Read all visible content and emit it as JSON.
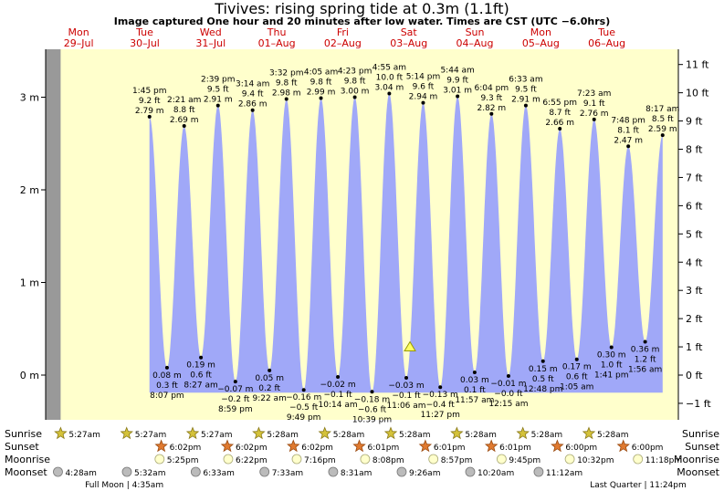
{
  "header": {
    "title": "Tivives: rising  spring tide at 0.3m (1.1ft)",
    "subtitle": "Image captured One hour and 20 minutes after low water. Times are CST (UTC −6.0hrs)"
  },
  "colors": {
    "tide_fill": "#a0a8f8",
    "day_bg": "#ffffcc",
    "night_bg": "#999999",
    "day_label": "#cc0000",
    "current_marker": "#ffff66"
  },
  "days": [
    {
      "dow": "Mon",
      "date": "29–Jul"
    },
    {
      "dow": "Tue",
      "date": "30–Jul"
    },
    {
      "dow": "Wed",
      "date": "31–Jul"
    },
    {
      "dow": "Thu",
      "date": "01–Aug"
    },
    {
      "dow": "Fri",
      "date": "02–Aug"
    },
    {
      "dow": "Sat",
      "date": "03–Aug"
    },
    {
      "dow": "Sun",
      "date": "04–Aug"
    },
    {
      "dow": "Mon",
      "date": "05–Aug"
    },
    {
      "dow": "Tue",
      "date": "06–Aug"
    }
  ],
  "chart_data": {
    "type": "area",
    "title": "Tivives: rising  spring tide at 0.3m (1.1ft)",
    "y_left_unit": "m",
    "y_right_unit": "ft",
    "ylim_m": [
      -0.45,
      3.45
    ],
    "left_ticks": [
      {
        "value": 3,
        "label": "3 m"
      },
      {
        "value": 2,
        "label": "2 m"
      },
      {
        "value": 1,
        "label": "1 m"
      },
      {
        "value": 0,
        "label": "0 m"
      }
    ],
    "right_ticks": [
      {
        "value": 11,
        "label": "11 ft"
      },
      {
        "value": 10,
        "label": "10 ft"
      },
      {
        "value": 9,
        "label": "9 ft"
      },
      {
        "value": 8,
        "label": "8 ft"
      },
      {
        "value": 7,
        "label": "7 ft"
      },
      {
        "value": 6,
        "label": "6 ft"
      },
      {
        "value": 5,
        "label": "5 ft"
      },
      {
        "value": 4,
        "label": "4 ft"
      },
      {
        "value": 3,
        "label": "3 ft"
      },
      {
        "value": 2,
        "label": "2 ft"
      },
      {
        "value": 1,
        "label": "1 ft"
      },
      {
        "value": 0,
        "label": "0 ft"
      },
      {
        "value": -1,
        "label": "−1 ft"
      }
    ],
    "extremes": [
      {
        "type": "high",
        "time": "1:45 pm",
        "m": 2.79,
        "ft": "9.2 ft",
        "mlabel": "2.79 m",
        "h": 37.75
      },
      {
        "type": "low",
        "time": "8:07 pm",
        "m": 0.08,
        "ft": "0.3 ft",
        "mlabel": "0.08 m",
        "h": 44.12
      },
      {
        "type": "high",
        "time": "2:21 am",
        "m": 2.69,
        "ft": "8.8 ft",
        "mlabel": "2.69 m",
        "h": 50.35
      },
      {
        "type": "low",
        "time": "8:27 am",
        "m": 0.19,
        "ft": "0.6 ft",
        "mlabel": "0.19 m",
        "h": 56.45
      },
      {
        "type": "high",
        "time": "2:39 pm",
        "m": 2.91,
        "ft": "9.5 ft",
        "mlabel": "2.91 m",
        "h": 62.65
      },
      {
        "type": "low",
        "time": "8:59 pm",
        "m": -0.07,
        "ft": "−0.2 ft",
        "mlabel": "−0.07 m",
        "h": 68.98
      },
      {
        "type": "high",
        "time": "3:14 am",
        "m": 2.86,
        "ft": "9.4 ft",
        "mlabel": "2.86 m",
        "h": 75.23
      },
      {
        "type": "low",
        "time": "9:22 am",
        "m": 0.05,
        "ft": "0.2 ft",
        "mlabel": "0.05 m",
        "h": 81.37
      },
      {
        "type": "high",
        "time": "3:32 pm",
        "m": 2.98,
        "ft": "9.8 ft",
        "mlabel": "2.98 m",
        "h": 87.53
      },
      {
        "type": "low",
        "time": "9:49 pm",
        "m": -0.16,
        "ft": "−0.5 ft",
        "mlabel": "−0.16 m",
        "h": 93.82
      },
      {
        "type": "high",
        "time": "4:05 am",
        "m": 2.99,
        "ft": "9.8 ft",
        "mlabel": "2.99 m",
        "h": 100.08
      },
      {
        "type": "low",
        "time": "10:14 am",
        "m": -0.02,
        "ft": "−0.1 ft",
        "mlabel": "−0.02 m",
        "h": 106.23
      },
      {
        "type": "high",
        "time": "4:23 pm",
        "m": 3.0,
        "ft": "9.8 ft",
        "mlabel": "3.00 m",
        "h": 112.38
      },
      {
        "type": "low",
        "time": "10:39 pm",
        "m": -0.18,
        "ft": "−0.6 ft",
        "mlabel": "−0.18 m",
        "h": 118.65
      },
      {
        "type": "high",
        "time": "4:55 am",
        "m": 3.04,
        "ft": "10.0 ft",
        "mlabel": "3.04 m",
        "h": 124.92
      },
      {
        "type": "low",
        "time": "11:06 am",
        "m": -0.03,
        "ft": "−0.1 ft",
        "mlabel": "−0.03 m",
        "h": 131.1
      },
      {
        "type": "high",
        "time": "5:14 pm",
        "m": 2.94,
        "ft": "9.6 ft",
        "mlabel": "2.94 m",
        "h": 137.23
      },
      {
        "type": "low",
        "time": "11:27 pm",
        "m": -0.13,
        "ft": "−0.4 ft",
        "mlabel": "−0.13 m",
        "h": 143.45
      },
      {
        "type": "high",
        "time": "5:44 am",
        "m": 3.01,
        "ft": "9.9 ft",
        "mlabel": "3.01 m",
        "h": 149.73
      },
      {
        "type": "low",
        "time": "11:57 am",
        "m": 0.03,
        "ft": "0.1 ft",
        "mlabel": "0.03 m",
        "h": 155.95
      },
      {
        "type": "high",
        "time": "6:04 pm",
        "m": 2.82,
        "ft": "9.3 ft",
        "mlabel": "2.82 m",
        "h": 162.07
      },
      {
        "type": "low",
        "time": "12:15 am",
        "m": -0.01,
        "ft": "−0.0 ft",
        "mlabel": "−0.01 m",
        "h": 168.25
      },
      {
        "type": "high",
        "time": "6:33 am",
        "m": 2.91,
        "ft": "9.5 ft",
        "mlabel": "2.91 m",
        "h": 174.55
      },
      {
        "type": "low",
        "time": "12:48 pm",
        "m": 0.15,
        "ft": "0.5 ft",
        "mlabel": "0.15 m",
        "h": 180.8
      },
      {
        "type": "high",
        "time": "6:55 pm",
        "m": 2.66,
        "ft": "8.7 ft",
        "mlabel": "2.66 m",
        "h": 186.92
      },
      {
        "type": "low",
        "time": "1:05 am",
        "m": 0.17,
        "ft": "0.6 ft",
        "mlabel": "0.17 m",
        "h": 193.08
      },
      {
        "type": "high",
        "time": "7:23 am",
        "m": 2.76,
        "ft": "9.1 ft",
        "mlabel": "2.76 m",
        "h": 199.38
      },
      {
        "type": "low",
        "time": "1:41 pm",
        "m": 0.3,
        "ft": "1.0 ft",
        "mlabel": "0.30 m",
        "h": 205.68
      },
      {
        "type": "high",
        "time": "7:48 pm",
        "m": 2.47,
        "ft": "8.1 ft",
        "mlabel": "2.47 m",
        "h": 211.8
      },
      {
        "type": "low",
        "time": "1:56 am",
        "m": 0.36,
        "ft": "1.2 ft",
        "mlabel": "0.36 m",
        "h": 217.93
      },
      {
        "type": "high",
        "time": "8:17 am",
        "m": 2.59,
        "ft": "8.5 ft",
        "mlabel": "2.59 m",
        "h": 224.28
      }
    ],
    "current_h": 132.43,
    "current_m": 0.3
  },
  "sun_moon": {
    "labels": {
      "sunrise": "Sunrise",
      "sunset": "Sunset",
      "moonrise": "Moonrise",
      "moonset": "Moonset"
    },
    "sunrise": [
      {
        "text": "5:27am",
        "h": 5.45
      },
      {
        "text": "5:27am",
        "h": 29.45
      },
      {
        "text": "5:27am",
        "h": 53.45
      },
      {
        "text": "5:28am",
        "h": 77.47
      },
      {
        "text": "5:28am",
        "h": 101.47
      },
      {
        "text": "5:28am",
        "h": 125.47
      },
      {
        "text": "5:28am",
        "h": 149.47
      },
      {
        "text": "5:28am",
        "h": 173.47
      },
      {
        "text": "5:28am",
        "h": 197.47
      }
    ],
    "sunset": [
      {
        "text": "6:02pm",
        "h": 42.03
      },
      {
        "text": "6:02pm",
        "h": 66.03
      },
      {
        "text": "6:02pm",
        "h": 90.03
      },
      {
        "text": "6:01pm",
        "h": 114.02
      },
      {
        "text": "6:01pm",
        "h": 138.02
      },
      {
        "text": "6:01pm",
        "h": 162.02
      },
      {
        "text": "6:00pm",
        "h": 186.0
      },
      {
        "text": "6:00pm",
        "h": 210.0
      }
    ],
    "moonrise": [
      {
        "text": "5:25pm",
        "h": 41.42
      },
      {
        "text": "6:22pm",
        "h": 66.37
      },
      {
        "text": "7:16pm",
        "h": 91.27
      },
      {
        "text": "8:08pm",
        "h": 116.13
      },
      {
        "text": "8:57pm",
        "h": 140.95
      },
      {
        "text": "9:45pm",
        "h": 165.75
      },
      {
        "text": "10:32pm",
        "h": 190.53
      },
      {
        "text": "11:18pm",
        "h": 215.3
      }
    ],
    "moonset": [
      {
        "text": "4:28am",
        "h": 4.47
      },
      {
        "text": "5:32am",
        "h": 29.53
      },
      {
        "text": "6:33am",
        "h": 54.55
      },
      {
        "text": "7:33am",
        "h": 79.55
      },
      {
        "text": "8:31am",
        "h": 104.52
      },
      {
        "text": "9:26am",
        "h": 129.43
      },
      {
        "text": "10:20am",
        "h": 154.33
      },
      {
        "text": "11:12am",
        "h": 179.2
      }
    ],
    "moon_phases": [
      {
        "text": "Full Moon | 4:35am",
        "h": 28.58
      },
      {
        "text": "Last Quarter | 11:24pm",
        "h": 215.4
      }
    ]
  }
}
